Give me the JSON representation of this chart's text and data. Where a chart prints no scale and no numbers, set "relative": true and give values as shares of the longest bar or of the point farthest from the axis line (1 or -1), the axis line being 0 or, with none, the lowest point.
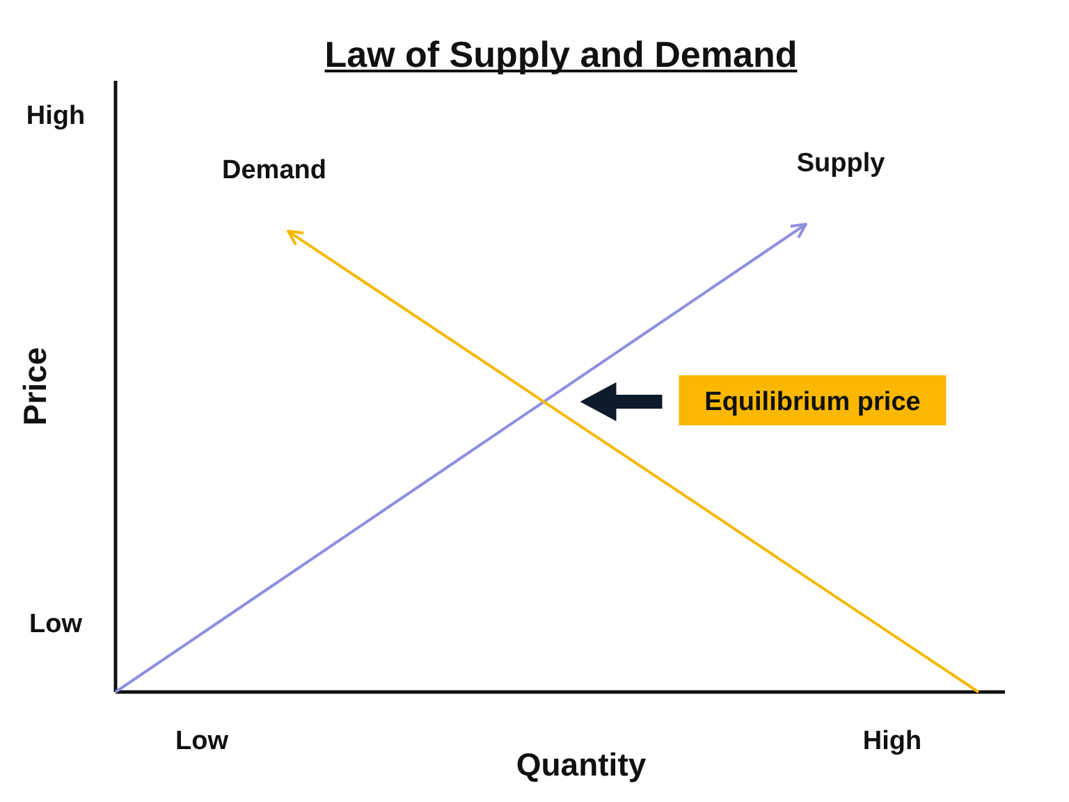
{
  "chart_data": {
    "type": "line",
    "title": "Law of Supply and Demand",
    "xlabel": "Quantity",
    "ylabel": "Price",
    "relative": true,
    "categories": [
      null,
      "Low",
      null,
      null,
      null,
      null,
      null,
      null,
      null,
      "High",
      null
    ],
    "series": [
      {
        "name": "Supply",
        "color": "#8f8fe0",
        "values": [
          0,
          0.125,
          0.25,
          0.375,
          0.5,
          0.625,
          0.75,
          0.875,
          1,
          null,
          null
        ]
      },
      {
        "name": "Demand",
        "color": "#f5b800",
        "values": [
          null,
          null,
          0.985,
          0.862,
          0.739,
          0.616,
          0.493,
          0.37,
          0.246,
          0.123,
          0
        ]
      }
    ],
    "annotations": [
      "High",
      "Low",
      "Equilibrium price"
    ],
    "grid": false,
    "legend": false,
    "marker": "none",
    "line_style": "solid"
  }
}
